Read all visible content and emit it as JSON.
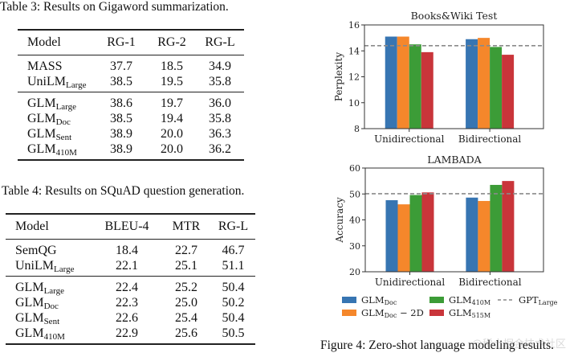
{
  "table3": {
    "caption": "Table 3: Results on Gigaword summarization.",
    "columns": [
      "Model",
      "RG-1",
      "RG-2",
      "RG-L"
    ],
    "groups": [
      [
        {
          "model": "MASS",
          "sub": "",
          "values": [
            "37.7",
            "18.5",
            "34.9"
          ],
          "bold": [
            false,
            false,
            false
          ]
        },
        {
          "model": "UniLM",
          "sub": "Large",
          "values": [
            "38.5",
            "19.5",
            "35.8"
          ],
          "bold": [
            false,
            false,
            false
          ]
        }
      ],
      [
        {
          "model": "GLM",
          "sub": "Large",
          "values": [
            "38.6",
            "19.7",
            "36.0"
          ],
          "bold": [
            false,
            false,
            false
          ]
        },
        {
          "model": "GLM",
          "sub": "Doc",
          "values": [
            "38.5",
            "19.4",
            "35.8"
          ],
          "bold": [
            false,
            false,
            false
          ]
        },
        {
          "model": "GLM",
          "sub": "Sent",
          "values": [
            "38.9",
            "20.0",
            "36.3"
          ],
          "bold": [
            false,
            false,
            true
          ]
        },
        {
          "model": "GLM",
          "sub": "410M",
          "values": [
            "38.9",
            "20.0",
            "36.2"
          ],
          "bold": [
            true,
            true,
            false
          ]
        }
      ]
    ]
  },
  "table4": {
    "caption": "Table 4: Results on SQuAD question generation.",
    "columns": [
      "Model",
      "BLEU-4",
      "MTR",
      "RG-L"
    ],
    "groups": [
      [
        {
          "model": "SemQG",
          "sub": "",
          "values": [
            "18.4",
            "22.7",
            "46.7"
          ],
          "bold": [
            false,
            false,
            false
          ]
        },
        {
          "model": "UniLM",
          "sub": "Large",
          "values": [
            "22.1",
            "25.1",
            "51.1"
          ],
          "bold": [
            false,
            false,
            true
          ]
        }
      ],
      [
        {
          "model": "GLM",
          "sub": "Large",
          "values": [
            "22.4",
            "25.2",
            "50.4"
          ],
          "bold": [
            false,
            false,
            false
          ]
        },
        {
          "model": "GLM",
          "sub": "Doc",
          "values": [
            "22.3",
            "25.0",
            "50.2"
          ],
          "bold": [
            false,
            false,
            false
          ]
        },
        {
          "model": "GLM",
          "sub": "Sent",
          "values": [
            "22.6",
            "25.4",
            "50.4"
          ],
          "bold": [
            false,
            false,
            false
          ]
        },
        {
          "model": "GLM",
          "sub": "410M",
          "values": [
            "22.9",
            "25.6",
            "50.5"
          ],
          "bold": [
            true,
            true,
            false
          ]
        }
      ]
    ]
  },
  "figure": {
    "caption": "Figure 4: Zero-shot language modeling results.",
    "watermark": "@稀土掘金技术社区"
  },
  "colors": {
    "GLM_Doc": "#3775b2",
    "GLM_Doc_2D": "#f5872b",
    "GLM_410M": "#3c9c37",
    "GLM_515M": "#c9353a",
    "GPT_Large": "#888888"
  },
  "legend": [
    {
      "key": "GLM_Doc",
      "label": "GLM",
      "sub": "Doc",
      "suffix": "",
      "kind": "bar"
    },
    {
      "key": "GLM_Doc_2D",
      "label": "GLM",
      "sub": "Doc",
      "suffix": " − 2D",
      "kind": "bar"
    },
    {
      "key": "GLM_410M",
      "label": "GLM",
      "sub": "410M",
      "suffix": "",
      "kind": "bar"
    },
    {
      "key": "GLM_515M",
      "label": "GLM",
      "sub": "515M",
      "suffix": "",
      "kind": "bar"
    },
    {
      "key": "GPT_Large",
      "label": "GPT",
      "sub": "Large",
      "suffix": "",
      "kind": "dashed"
    }
  ],
  "chart_data": [
    {
      "type": "bar",
      "title": "Books&Wiki Test",
      "xlabel": "",
      "ylabel": "Perplexity",
      "ylim": [
        8,
        16
      ],
      "yticks": [
        8,
        10,
        12,
        14,
        16
      ],
      "categories": [
        "Unidirectional",
        "Bidirectional"
      ],
      "series": [
        {
          "name": "GLM_Doc",
          "values": [
            15.1,
            14.9
          ]
        },
        {
          "name": "GLM_Doc − 2D",
          "values": [
            15.1,
            15.0
          ]
        },
        {
          "name": "GLM_410M",
          "values": [
            14.5,
            14.3
          ]
        },
        {
          "name": "GLM_515M",
          "values": [
            13.9,
            13.7
          ]
        }
      ],
      "reference_line": {
        "name": "GPT_Large",
        "value": 14.4,
        "style": "dashed"
      },
      "grid": false,
      "legend": "bottom"
    },
    {
      "type": "bar",
      "title": "LAMBADA",
      "xlabel": "",
      "ylabel": "Accuracy",
      "ylim": [
        20,
        60
      ],
      "yticks": [
        20,
        30,
        40,
        50,
        60
      ],
      "categories": [
        "Unidirectional",
        "Bidirectional"
      ],
      "series": [
        {
          "name": "GLM_Doc",
          "values": [
            47.6,
            48.6
          ]
        },
        {
          "name": "GLM_Doc − 2D",
          "values": [
            46.0,
            47.3
          ]
        },
        {
          "name": "GLM_410M",
          "values": [
            49.6,
            53.5
          ]
        },
        {
          "name": "GLM_515M",
          "values": [
            50.6,
            55.0
          ]
        }
      ],
      "reference_line": {
        "name": "GPT_Large",
        "value": 50.1,
        "style": "dashed"
      },
      "grid": false,
      "legend": "bottom"
    }
  ]
}
